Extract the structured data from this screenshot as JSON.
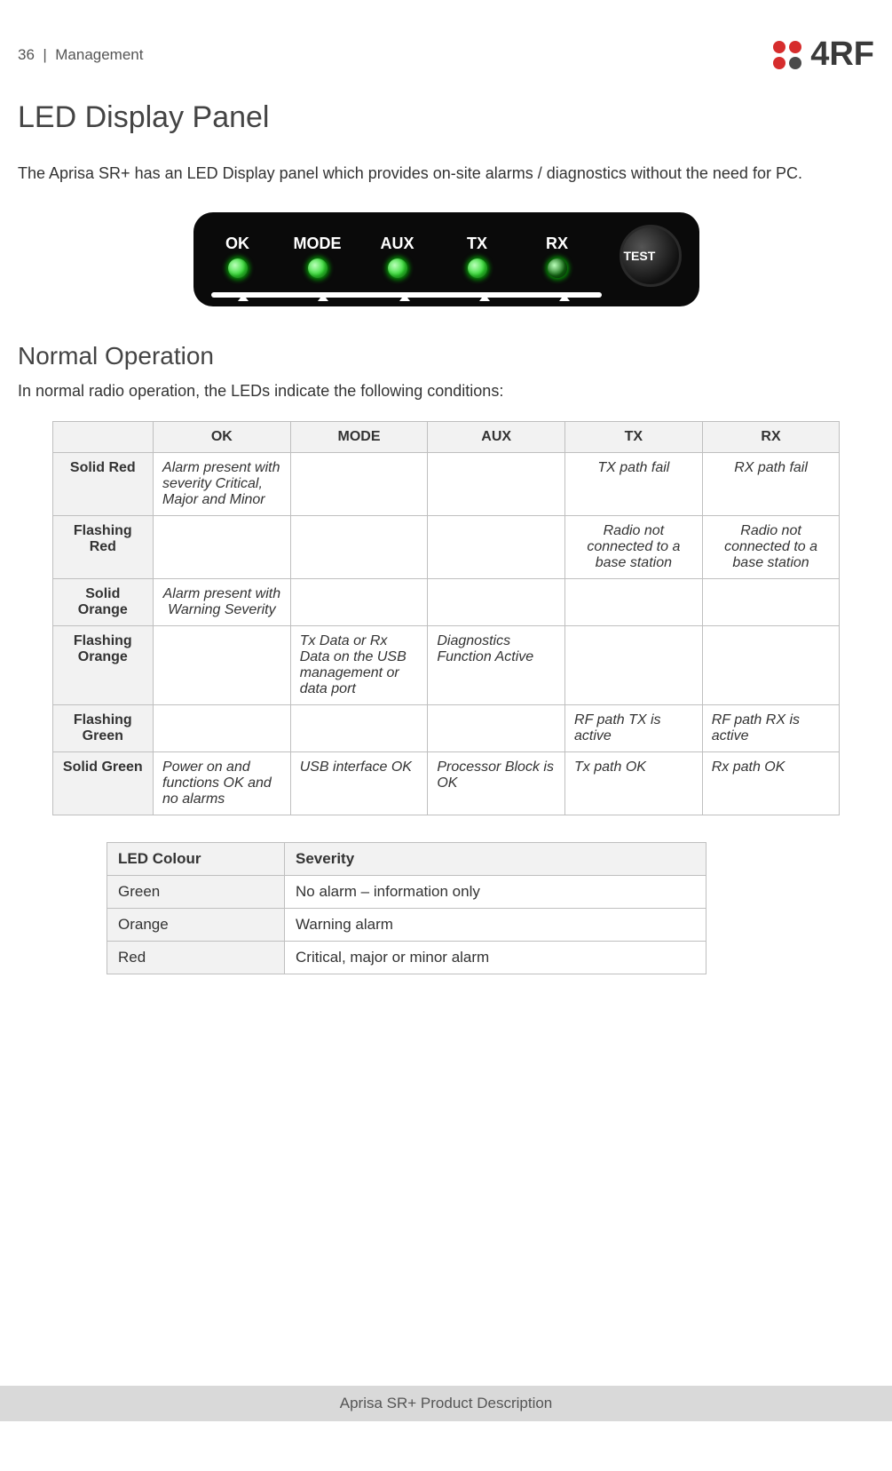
{
  "page_number": "36",
  "header_section": "Management",
  "logo": {
    "text": "4RF",
    "dot_colors": [
      "#d62d2d",
      "#d62d2d",
      "#d62d2d",
      "#4a4a4a"
    ]
  },
  "title": "LED Display Panel",
  "intro": "The Aprisa SR+ has an LED Display panel which provides on-site alarms / diagnostics without the need for PC.",
  "panel": {
    "labels": [
      "OK",
      "MODE",
      "AUX",
      "TX",
      "RX"
    ],
    "led_colors": [
      "#2fd82f",
      "#2fd82f",
      "#2fd82f",
      "#2fd82f",
      "#106810"
    ],
    "test_label": "TEST",
    "bg": "#0a0a0a"
  },
  "subheading": "Normal Operation",
  "subintro": "In normal radio operation, the LEDs indicate the following conditions:",
  "table1": {
    "columns": [
      "",
      "OK",
      "MODE",
      "AUX",
      "TX",
      "RX"
    ],
    "rows": [
      {
        "head": "Solid Red",
        "cells": [
          "Alarm present with severity Critical, Major and Minor",
          "",
          "",
          "TX path fail",
          "RX path fail"
        ],
        "center": [
          false,
          false,
          false,
          true,
          true
        ]
      },
      {
        "head": "Flashing Red",
        "cells": [
          "",
          "",
          "",
          "Radio not connected to a base station",
          "Radio not connected to a base station"
        ],
        "center": [
          false,
          false,
          false,
          true,
          true
        ]
      },
      {
        "head": "Solid Orange",
        "cells": [
          "Alarm present with Warning Severity",
          "",
          "",
          "",
          ""
        ],
        "center": [
          true,
          false,
          false,
          false,
          false
        ]
      },
      {
        "head": "Flashing Orange",
        "cells": [
          "",
          "Tx Data or Rx Data on the USB management or data port",
          "Diagnostics Function Active",
          "",
          ""
        ],
        "center": [
          false,
          false,
          false,
          false,
          false
        ]
      },
      {
        "head": "Flashing Green",
        "cells": [
          "",
          "",
          "",
          "RF path TX is active",
          "RF path RX is active"
        ],
        "center": [
          false,
          false,
          false,
          false,
          false
        ]
      },
      {
        "head": "Solid Green",
        "cells": [
          "Power on and functions OK and no alarms",
          "USB interface OK",
          "Processor Block is OK",
          "Tx path OK",
          "Rx path OK"
        ],
        "center": [
          false,
          false,
          false,
          false,
          false
        ]
      }
    ]
  },
  "table2": {
    "columns": [
      "LED Colour",
      "Severity"
    ],
    "rows": [
      [
        "Green",
        "No alarm – information only"
      ],
      [
        "Orange",
        "Warning alarm"
      ],
      [
        "Red",
        "Critical, major or minor alarm"
      ]
    ]
  },
  "footer": "Aprisa SR+ Product Description",
  "colors": {
    "body_text": "#333333",
    "heading_text": "#444444",
    "table_border": "#bfbfbf",
    "table_header_bg": "#f2f2f2",
    "footer_bg": "#d9d9d9"
  }
}
